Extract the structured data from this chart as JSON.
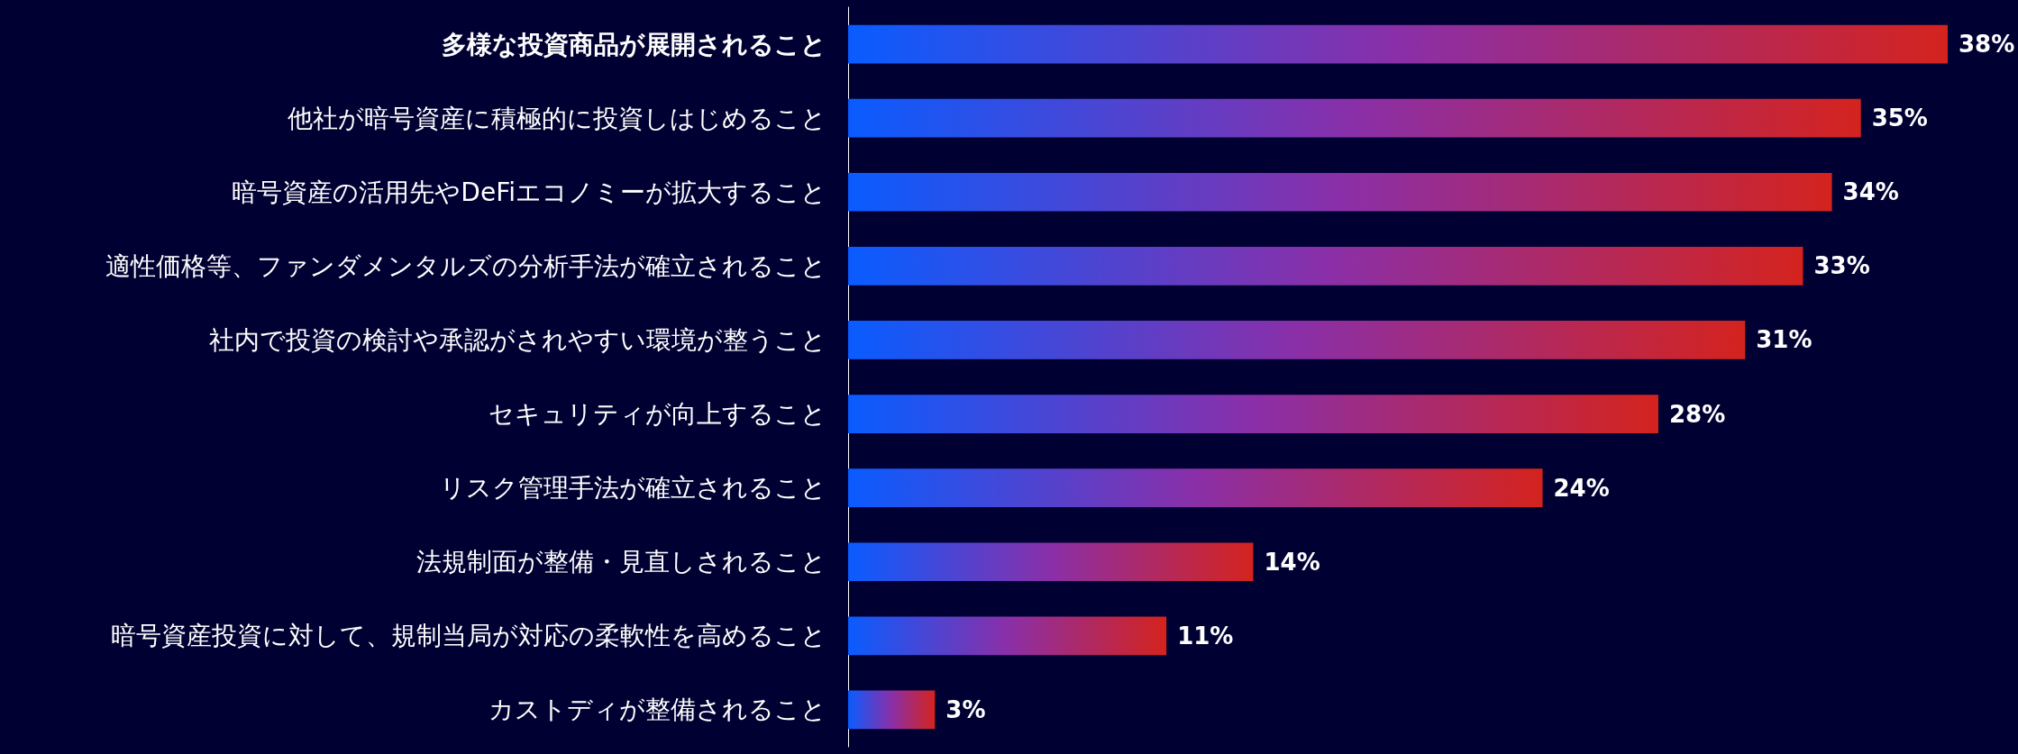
{
  "chart_data": {
    "type": "bar",
    "orientation": "horizontal",
    "categories": [
      "多様な投資商品が展開されること",
      "他社が暗号資産に積極的に投資しはじめること",
      "暗号資産の活用先やDeFiエコノミーが拡大すること",
      "適性価格等、ファンダメンタルズの分析手法が確立されること",
      "社内で投資の検討や承認がされやすい環境が整うこと",
      "セキュリティが向上すること",
      "リスク管理手法が確立されること",
      "法規制面が整備・見直しされること",
      "暗号資産投資に対して、規制当局が対応の柔軟性を高めること",
      "カストディが整備されること"
    ],
    "series": [
      {
        "color": "#0a5cff",
        "values": [
          38,
          35,
          34,
          33,
          31,
          28,
          24,
          14,
          11,
          3
        ],
        "value_labels": [
          "38%",
          "35%",
          "34%",
          "33%",
          "31%",
          "28%",
          "24%",
          "14%",
          "11%",
          "3%"
        ]
      }
    ]
  }
}
